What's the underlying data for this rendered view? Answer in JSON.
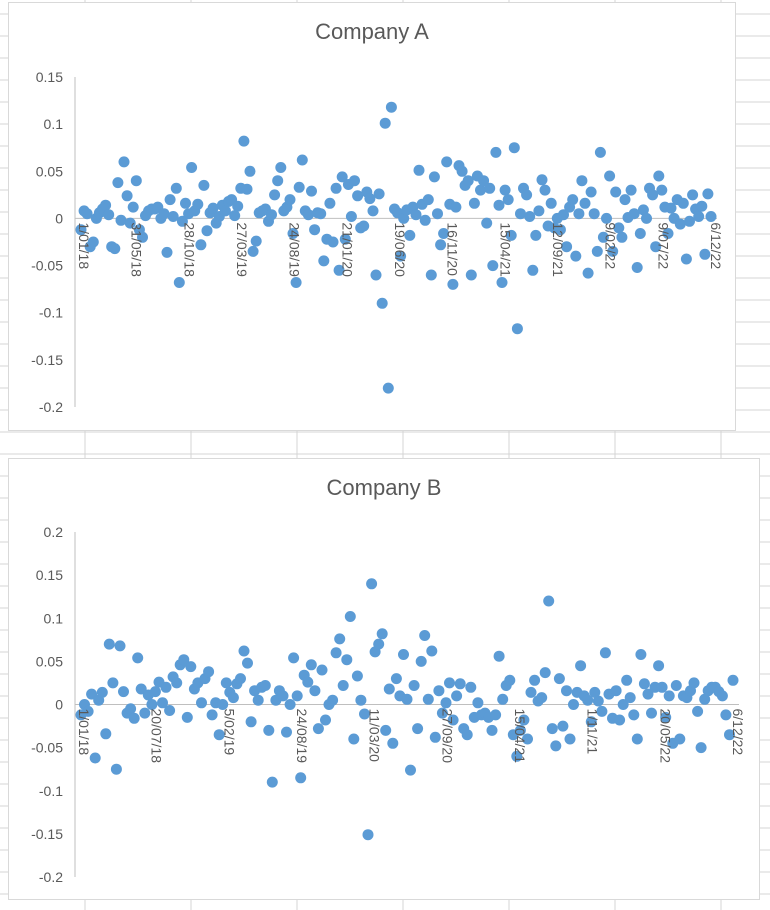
{
  "colors": {
    "point": "#5b9bd5",
    "axis": "#bfbfbf",
    "text": "#595959",
    "sheet_grid": "#d4d4d4"
  },
  "chart_data": [
    {
      "type": "scatter",
      "title": "Company A",
      "xlabel": "",
      "ylabel": "",
      "ylim": [
        -0.2,
        0.15
      ],
      "yticks": [
        "0.15",
        "0.1",
        "0.05",
        "0",
        "-0.05",
        "-0.1",
        "-0.15",
        "-0.2"
      ],
      "xticks": [
        "1/01/18",
        "31/05/18",
        "28/10/18",
        "27/03/19",
        "24/08/19",
        "21/01/20",
        "19/06/20",
        "16/11/20",
        "15/04/21",
        "12/09/21",
        "9/02/22",
        "9/07/22",
        "6/12/22"
      ],
      "grid": false,
      "legend": "none",
      "series": [
        {
          "values": [
            -0.012,
            0.008,
            0.005,
            -0.03,
            -0.025,
            0.0,
            0.006,
            0.01,
            0.014,
            0.004,
            -0.03,
            -0.032,
            0.038,
            -0.002,
            0.06,
            0.024,
            -0.005,
            0.012,
            0.04,
            -0.012,
            -0.02,
            0.003,
            0.008,
            0.01,
            0.01,
            0.012,
            0.0,
            0.005,
            -0.036,
            0.02,
            0.002,
            0.032,
            -0.068,
            -0.003,
            0.016,
            0.005,
            0.054,
            0.008,
            0.015,
            -0.028,
            0.035,
            -0.013,
            0.006,
            0.011,
            -0.005,
            0.002,
            0.014,
            0.008,
            0.018,
            0.02,
            0.003,
            0.013,
            0.032,
            0.082,
            0.031,
            0.05,
            -0.035,
            -0.024,
            0.006,
            0.008,
            0.01,
            -0.003,
            0.004,
            0.025,
            0.04,
            0.054,
            0.008,
            0.012,
            0.02,
            -0.016,
            -0.068,
            0.033,
            0.062,
            0.008,
            0.004,
            0.029,
            -0.012,
            0.006,
            0.005,
            -0.045,
            -0.022,
            0.016,
            -0.025,
            0.032,
            -0.055,
            0.044,
            -0.022,
            0.036,
            0.002,
            0.04,
            0.024,
            -0.01,
            -0.008,
            0.028,
            0.021,
            0.008,
            -0.06,
            0.026,
            -0.09,
            0.101,
            -0.18,
            0.118,
            0.01,
            0.006,
            -0.04,
            0.0,
            0.009,
            -0.018,
            0.012,
            0.004,
            0.051,
            0.015,
            -0.002,
            0.02,
            -0.06,
            0.044,
            0.005,
            -0.028,
            -0.016,
            0.06,
            0.015,
            -0.07,
            0.012,
            0.056,
            0.05,
            0.035,
            0.04,
            -0.06,
            0.016,
            0.045,
            0.03,
            0.04,
            -0.005,
            0.032,
            -0.05,
            0.07,
            0.014,
            -0.068,
            0.03,
            0.02,
            -0.018,
            0.075,
            -0.117,
            0.005,
            0.032,
            0.025,
            0.002,
            -0.055,
            -0.018,
            0.008,
            0.041,
            0.03,
            -0.008,
            0.016,
            -0.01,
            0.0,
            -0.012,
            0.004,
            -0.03,
            0.012,
            0.02,
            -0.04,
            0.005,
            0.04,
            0.016,
            -0.058,
            0.028,
            0.005,
            -0.035,
            0.07,
            -0.02,
            0.0,
            0.045,
            -0.035,
            0.028,
            -0.01,
            -0.02,
            0.02,
            0.001,
            0.03,
            0.005,
            -0.052,
            -0.016,
            0.009,
            0.0,
            0.032,
            0.025,
            -0.03,
            0.045,
            0.03,
            0.012,
            -0.016,
            0.011,
            0.0,
            0.02,
            -0.006,
            0.016,
            -0.043,
            -0.003,
            0.025,
            0.01,
            0.002,
            0.013,
            -0.038,
            0.026,
            0.002
          ]
        }
      ]
    },
    {
      "type": "scatter",
      "title": "Company B",
      "xlabel": "",
      "ylabel": "",
      "ylim": [
        -0.2,
        0.2
      ],
      "yticks": [
        "0.2",
        "0.15",
        "0.1",
        "0.05",
        "0",
        "-0.05",
        "-0.1",
        "-0.15",
        "-0.2"
      ],
      "xticks": [
        "1/01/18",
        "20/07/18",
        "5/02/19",
        "24/08/19",
        "11/03/20",
        "27/09/20",
        "15/04/21",
        "1/11/21",
        "20/05/22",
        "6/12/22"
      ],
      "grid": false,
      "legend": "none",
      "series": [
        {
          "values": [
            -0.012,
            0.0,
            -0.008,
            0.012,
            -0.062,
            0.005,
            0.014,
            -0.034,
            0.07,
            0.025,
            -0.075,
            0.068,
            0.015,
            -0.01,
            -0.005,
            -0.016,
            0.054,
            0.018,
            -0.01,
            0.011,
            0.0,
            0.015,
            0.026,
            0.002,
            0.02,
            -0.007,
            0.032,
            0.025,
            0.046,
            0.052,
            -0.015,
            0.044,
            0.018,
            0.025,
            0.002,
            0.03,
            0.038,
            -0.012,
            0.002,
            -0.035,
            0.0,
            0.025,
            0.014,
            0.008,
            0.024,
            0.03,
            0.062,
            0.048,
            -0.02,
            0.016,
            0.005,
            0.02,
            0.022,
            -0.03,
            -0.09,
            0.005,
            0.016,
            0.01,
            -0.032,
            0.0,
            0.054,
            0.01,
            -0.085,
            0.034,
            0.026,
            0.046,
            0.016,
            -0.028,
            0.04,
            -0.018,
            0.0,
            0.005,
            0.06,
            0.076,
            0.022,
            0.052,
            0.102,
            -0.04,
            0.033,
            0.005,
            -0.011,
            -0.151,
            0.14,
            0.061,
            0.07,
            0.082,
            -0.03,
            0.018,
            -0.045,
            0.03,
            0.01,
            0.058,
            0.006,
            -0.076,
            0.022,
            -0.028,
            0.05,
            0.08,
            0.006,
            0.062,
            -0.038,
            0.016,
            -0.01,
            0.002,
            0.025,
            -0.018,
            0.01,
            0.024,
            -0.028,
            -0.035,
            0.02,
            -0.015,
            0.002,
            -0.012,
            -0.01,
            -0.015,
            -0.03,
            -0.012,
            0.056,
            0.006,
            0.022,
            0.028,
            -0.035,
            -0.06,
            -0.03,
            -0.018,
            -0.04,
            0.014,
            0.028,
            0.004,
            0.008,
            0.037,
            0.12,
            -0.028,
            -0.048,
            0.03,
            -0.025,
            0.016,
            -0.04,
            0.0,
            0.014,
            0.045,
            0.01,
            0.005,
            -0.02,
            0.014,
            0.004,
            -0.008,
            0.06,
            0.012,
            -0.016,
            0.016,
            -0.018,
            0.0,
            0.028,
            0.008,
            -0.012,
            -0.04,
            0.058,
            0.024,
            0.012,
            -0.01,
            0.02,
            0.045,
            0.02,
            -0.015,
            0.01,
            -0.045,
            0.022,
            -0.04,
            0.01,
            0.008,
            0.016,
            0.025,
            -0.008,
            -0.05,
            0.006,
            0.016,
            0.02,
            0.02,
            0.015,
            0.01,
            -0.012,
            -0.035,
            0.028
          ]
        }
      ]
    }
  ]
}
